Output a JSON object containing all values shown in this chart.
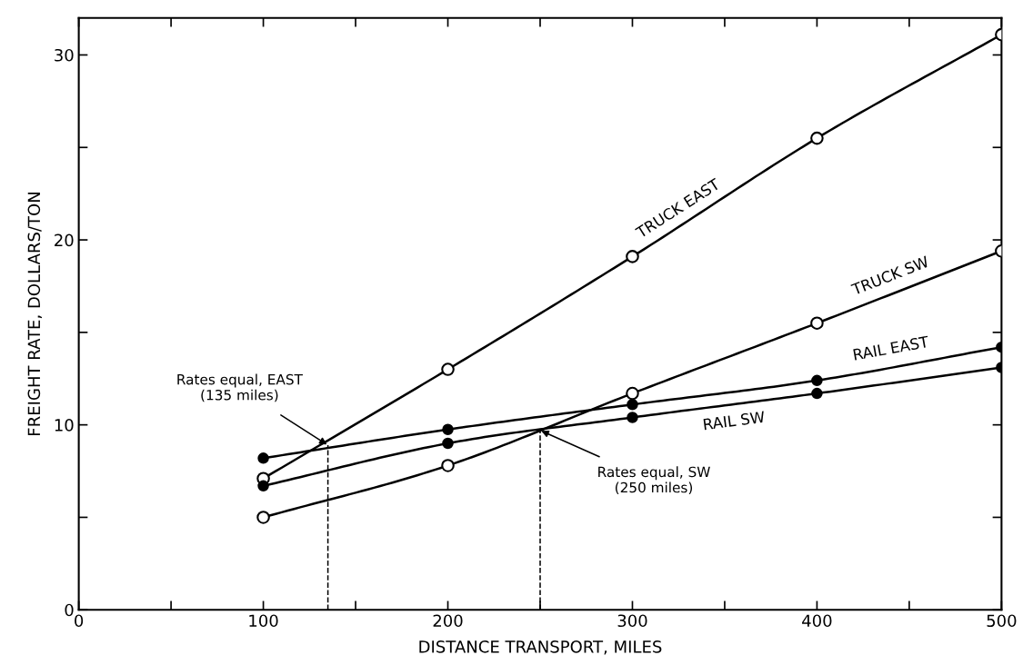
{
  "chart_data": {
    "type": "line",
    "xlabel": "DISTANCE TRANSPORT, MILES",
    "ylabel": "FREIGHT RATE, DOLLARS/TON",
    "x": [
      100,
      200,
      300,
      400,
      500
    ],
    "series": [
      {
        "name": "TRUCK EAST",
        "color": "#000000",
        "marker": "open circle",
        "values": [
          7.1,
          13.0,
          19.1,
          25.5,
          31.1
        ]
      },
      {
        "name": "TRUCK SW",
        "color": "#000000",
        "marker": "open circle",
        "values": [
          5.0,
          7.8,
          11.7,
          15.5,
          19.4
        ]
      },
      {
        "name": "RAIL EAST",
        "color": "#000000",
        "marker": "circle",
        "values": [
          8.2,
          9.75,
          11.1,
          12.4,
          14.2
        ]
      },
      {
        "name": "RAIL SW",
        "color": "#000000",
        "marker": "circle",
        "values": [
          6.7,
          9.0,
          10.4,
          11.7,
          13.1
        ]
      }
    ],
    "xlim": [
      0,
      500
    ],
    "ylim": [
      0,
      32
    ],
    "xticks": [
      0,
      {
        "value": 50,
        "label": null
      },
      100,
      {
        "value": 150,
        "label": null
      },
      200,
      {
        "value": 250,
        "label": null
      },
      300,
      {
        "value": 350,
        "label": null
      },
      400,
      {
        "value": 450,
        "label": null
      },
      500
    ],
    "yticks": [
      0,
      {
        "value": 5,
        "label": null
      },
      10,
      {
        "value": 15,
        "label": null
      },
      20,
      {
        "value": 25,
        "label": null
      },
      30
    ],
    "ref_lines": [
      {
        "axis": "x",
        "value": 135,
        "label": null,
        "line_style": "dashed"
      },
      {
        "axis": "x",
        "value": 250,
        "label": null,
        "line_style": "dashed"
      }
    ],
    "annotations": [
      {
        "text": "Rates equal, EAST\n(135 miles)",
        "x": 135,
        "y": 8.9
      },
      {
        "text": "Rates equal, SW\n(250 miles)",
        "x": 250,
        "y": 9.7
      }
    ],
    "grid": false,
    "legend": false,
    "line_style": "solid"
  }
}
